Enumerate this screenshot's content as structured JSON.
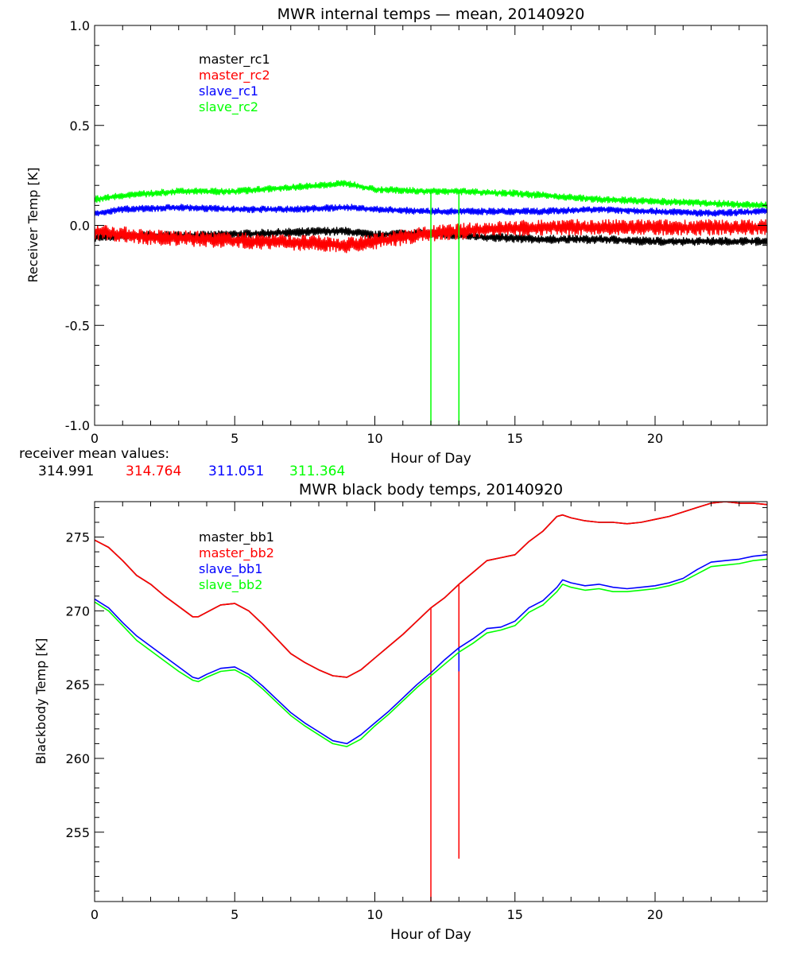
{
  "chart_data": [
    {
      "type": "line",
      "title": "MWR internal temps — mean, 20140920",
      "xlabel": "Hour of Day",
      "ylabel": "Receiver Temp [K]",
      "xlim": [
        0,
        24
      ],
      "ylim": [
        -1.0,
        1.0
      ],
      "xticks": [
        0,
        5,
        10,
        15,
        20
      ],
      "yticks": [
        -1.0,
        -0.5,
        0.0,
        0.5,
        1.0
      ],
      "ytick_labels": [
        "-1.0",
        "-0.5",
        "0.0",
        "0.5",
        "1.0"
      ],
      "legend_position": "top-left",
      "series": [
        {
          "name": "master_rc1",
          "color": "#000000",
          "noise": 0.015,
          "x": [
            0,
            2,
            4,
            6,
            8,
            9,
            10,
            11,
            12,
            13,
            14,
            16,
            18,
            20,
            22,
            24
          ],
          "y": [
            -0.06,
            -0.05,
            -0.05,
            -0.04,
            -0.03,
            -0.03,
            -0.05,
            -0.04,
            -0.04,
            -0.05,
            -0.06,
            -0.07,
            -0.07,
            -0.08,
            -0.08,
            -0.08
          ]
        },
        {
          "name": "master_rc2",
          "color": "#ff0000",
          "noise": 0.028,
          "x": [
            0,
            2,
            4,
            6,
            8,
            9,
            10,
            11,
            12,
            13,
            14,
            16,
            18,
            20,
            22,
            24
          ],
          "y": [
            -0.03,
            -0.06,
            -0.07,
            -0.08,
            -0.09,
            -0.1,
            -0.08,
            -0.06,
            -0.04,
            -0.03,
            -0.02,
            -0.01,
            -0.01,
            -0.01,
            -0.01,
            -0.01
          ]
        },
        {
          "name": "slave_rc1",
          "color": "#0000ff",
          "noise": 0.012,
          "x": [
            0,
            1,
            3,
            5,
            7,
            9,
            10,
            12,
            13,
            15,
            16,
            18,
            20,
            22,
            24
          ],
          "y": [
            0.06,
            0.08,
            0.09,
            0.08,
            0.08,
            0.09,
            0.08,
            0.07,
            0.07,
            0.07,
            0.07,
            0.08,
            0.07,
            0.06,
            0.07
          ]
        },
        {
          "name": "slave_rc2",
          "color": "#00ff00",
          "noise": 0.012,
          "x": [
            0,
            1,
            2,
            3,
            5,
            7,
            8,
            9,
            10,
            12,
            13,
            15,
            16,
            18,
            20,
            22,
            24
          ],
          "y": [
            0.13,
            0.15,
            0.16,
            0.17,
            0.17,
            0.19,
            0.2,
            0.21,
            0.18,
            0.17,
            0.17,
            0.16,
            0.15,
            0.13,
            0.12,
            0.11,
            0.1
          ],
          "spikes": [
            {
              "x": 12.0,
              "ymin": -1.0
            },
            {
              "x": 13.0,
              "ymin": -1.0
            }
          ]
        }
      ],
      "annotation": {
        "label": "receiver mean values:",
        "values": [
          {
            "text": "314.991",
            "color": "#000000"
          },
          {
            "text": "314.764",
            "color": "#ff0000"
          },
          {
            "text": "311.051",
            "color": "#0000ff"
          },
          {
            "text": "311.364",
            "color": "#00ff00"
          }
        ]
      }
    },
    {
      "type": "line",
      "title": "MWR black body temps, 20140920",
      "xlabel": "Hour of Day",
      "ylabel": "Blackbody Temp [K]",
      "xlim": [
        0,
        24
      ],
      "ylim": [
        250.3,
        277.4
      ],
      "xticks": [
        0,
        5,
        10,
        15,
        20
      ],
      "yticks": [
        255,
        260,
        265,
        270,
        275
      ],
      "ytick_labels": [
        "255",
        "260",
        "265",
        "270",
        "275"
      ],
      "legend_position": "top-left",
      "series": [
        {
          "name": "master_bb1",
          "color": "#000000",
          "x": [
            0,
            0.5,
            1,
            1.5,
            2,
            2.5,
            3,
            3.5,
            3.7,
            4,
            4.5,
            5,
            5.5,
            6,
            6.5,
            7,
            7.5,
            8,
            8.5,
            9,
            9.5,
            10,
            10.5,
            11,
            11.5,
            12,
            12.5,
            13,
            13.5,
            14,
            14.5,
            15,
            15.5,
            16,
            16.5,
            16.7,
            17,
            17.5,
            18,
            18.5,
            19,
            19.5,
            20,
            20.5,
            21,
            21.5,
            22,
            22.5,
            23,
            23.5,
            24
          ],
          "y": [
            274.8,
            274.3,
            273.4,
            272.4,
            271.8,
            271.0,
            270.3,
            269.6,
            269.6,
            269.9,
            270.4,
            270.5,
            270.0,
            269.1,
            268.1,
            267.1,
            266.5,
            266.0,
            265.6,
            265.5,
            266.0,
            266.8,
            267.6,
            268.4,
            269.3,
            270.2,
            270.9,
            271.8,
            272.6,
            273.4,
            273.6,
            273.8,
            274.7,
            275.4,
            276.4,
            276.5,
            276.3,
            276.1,
            276.0,
            276.0,
            275.9,
            276.0,
            276.2,
            276.4,
            276.7,
            277.0,
            277.3,
            277.4,
            277.3,
            277.3,
            277.2
          ]
        },
        {
          "name": "master_bb2",
          "color": "#ff0000",
          "x": [
            0,
            0.5,
            1,
            1.5,
            2,
            2.5,
            3,
            3.5,
            3.7,
            4,
            4.5,
            5,
            5.5,
            6,
            6.5,
            7,
            7.5,
            8,
            8.5,
            9,
            9.5,
            10,
            10.5,
            11,
            11.5,
            12,
            12.5,
            13,
            13.5,
            14,
            14.5,
            15,
            15.5,
            16,
            16.5,
            16.7,
            17,
            17.5,
            18,
            18.5,
            19,
            19.5,
            20,
            20.5,
            21,
            21.5,
            22,
            22.5,
            23,
            23.5,
            24
          ],
          "y": [
            274.8,
            274.3,
            273.4,
            272.4,
            271.8,
            271.0,
            270.3,
            269.6,
            269.6,
            269.9,
            270.4,
            270.5,
            270.0,
            269.1,
            268.1,
            267.1,
            266.5,
            266.0,
            265.6,
            265.5,
            266.0,
            266.8,
            267.6,
            268.4,
            269.3,
            270.2,
            270.9,
            271.8,
            272.6,
            273.4,
            273.6,
            273.8,
            274.7,
            275.4,
            276.4,
            276.5,
            276.3,
            276.1,
            276.0,
            276.0,
            275.9,
            276.0,
            276.2,
            276.4,
            276.7,
            277.0,
            277.3,
            277.4,
            277.3,
            277.3,
            277.2
          ],
          "spikes": [
            {
              "x": 12.0,
              "ymin": 250.3
            },
            {
              "x": 13.0,
              "ymin": 253.2
            }
          ]
        },
        {
          "name": "slave_bb1",
          "color": "#0000ff",
          "x": [
            0,
            0.5,
            1,
            1.5,
            2,
            2.5,
            3,
            3.5,
            3.7,
            4,
            4.5,
            5,
            5.5,
            6,
            6.5,
            7,
            7.5,
            8,
            8.5,
            9,
            9.5,
            10,
            10.5,
            11,
            11.5,
            12,
            12.5,
            13,
            13.5,
            14,
            14.5,
            15,
            15.5,
            16,
            16.5,
            16.7,
            17,
            17.5,
            18,
            18.5,
            19,
            19.5,
            20,
            20.5,
            21,
            21.5,
            22,
            22.5,
            23,
            23.5,
            24
          ],
          "y": [
            270.8,
            270.2,
            269.2,
            268.3,
            267.6,
            266.9,
            266.2,
            265.5,
            265.4,
            265.7,
            266.1,
            266.2,
            265.7,
            264.9,
            264.0,
            263.1,
            262.4,
            261.8,
            261.2,
            261.0,
            261.6,
            262.4,
            263.2,
            264.1,
            265.0,
            265.8,
            266.7,
            267.5,
            268.1,
            268.8,
            268.9,
            269.3,
            270.2,
            270.7,
            271.6,
            272.1,
            271.9,
            271.7,
            271.8,
            271.6,
            271.5,
            271.6,
            271.7,
            271.9,
            272.2,
            272.8,
            273.3,
            273.4,
            273.5,
            273.7,
            273.8
          ],
          "spikes": [
            {
              "x": 13.0,
              "ymin": 265.9
            }
          ]
        },
        {
          "name": "slave_bb2",
          "color": "#00ff00",
          "x": [
            0,
            0.5,
            1,
            1.5,
            2,
            2.5,
            3,
            3.5,
            3.7,
            4,
            4.5,
            5,
            5.5,
            6,
            6.5,
            7,
            7.5,
            8,
            8.5,
            9,
            9.5,
            10,
            10.5,
            11,
            11.5,
            12,
            12.5,
            13,
            13.5,
            14,
            14.5,
            15,
            15.5,
            16,
            16.5,
            16.7,
            17,
            17.5,
            18,
            18.5,
            19,
            19.5,
            20,
            20.5,
            21,
            21.5,
            22,
            22.5,
            23,
            23.5,
            24
          ],
          "y": [
            270.6,
            270.0,
            269.0,
            268.0,
            267.3,
            266.6,
            265.9,
            265.3,
            265.2,
            265.5,
            265.9,
            266.0,
            265.5,
            264.7,
            263.8,
            262.9,
            262.2,
            261.6,
            261.0,
            260.8,
            261.3,
            262.2,
            263.0,
            263.9,
            264.8,
            265.6,
            266.4,
            267.2,
            267.8,
            268.5,
            268.7,
            269.0,
            269.9,
            270.4,
            271.3,
            271.8,
            271.6,
            271.4,
            271.5,
            271.3,
            271.3,
            271.4,
            271.5,
            271.7,
            272.0,
            272.5,
            273.0,
            273.1,
            273.2,
            273.4,
            273.5
          ]
        }
      ]
    }
  ]
}
